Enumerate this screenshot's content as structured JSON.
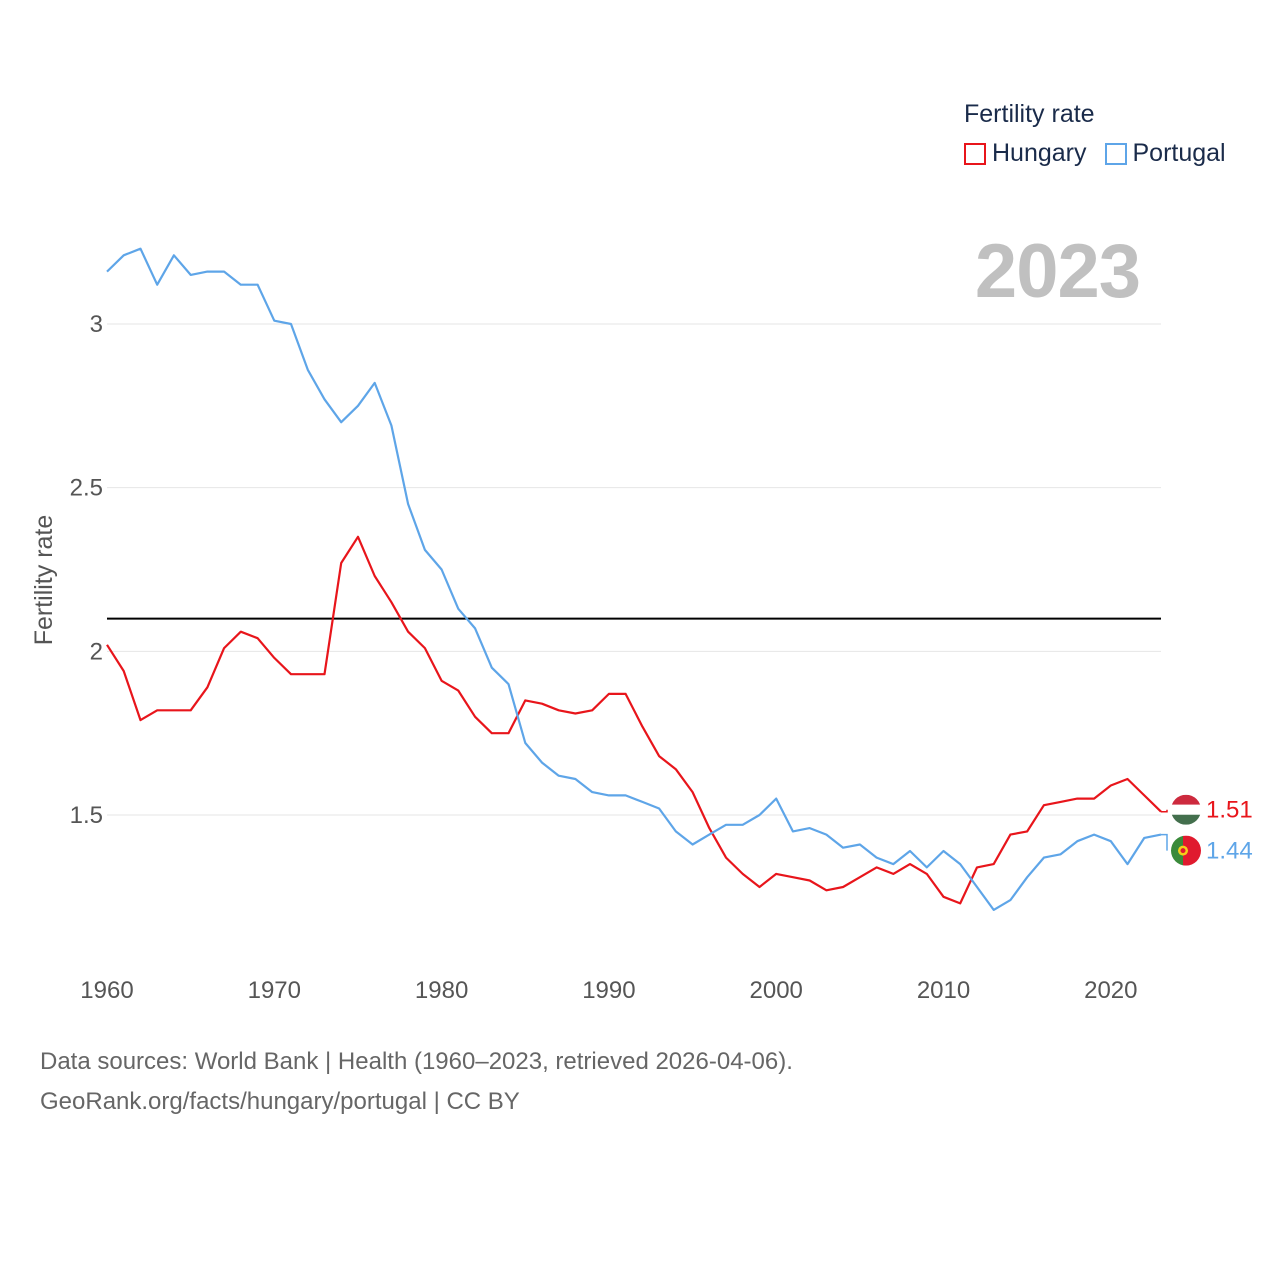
{
  "legend": {
    "title": "Fertility rate",
    "items": [
      {
        "label": "Hungary",
        "color": "#e8151b"
      },
      {
        "label": "Portugal",
        "color": "#5ea5e8"
      }
    ]
  },
  "current_year": "2023",
  "footer": {
    "line1": "Data sources: World Bank | Health (1960–2023, retrieved 2026-04-06).",
    "line2": "GeoRank.org/facts/hungary/portugal | CC BY"
  },
  "chart_data": {
    "type": "line",
    "title": "Fertility rate",
    "xlabel": "",
    "ylabel": "Fertility rate",
    "xlim": [
      1960,
      2023
    ],
    "ylim": [
      1.0,
      3.3
    ],
    "x_ticks": [
      1960,
      1970,
      1980,
      1990,
      2000,
      2010,
      2020
    ],
    "y_ticks": [
      {
        "value": 1.5,
        "label": "1.5"
      },
      {
        "value": 2,
        "label": "2"
      },
      {
        "value": 2.5,
        "label": "2.5"
      },
      {
        "value": 3,
        "label": "3"
      }
    ],
    "reference_line": 2.1,
    "x": [
      1960,
      1961,
      1962,
      1963,
      1964,
      1965,
      1966,
      1967,
      1968,
      1969,
      1970,
      1971,
      1972,
      1973,
      1974,
      1975,
      1976,
      1977,
      1978,
      1979,
      1980,
      1981,
      1982,
      1983,
      1984,
      1985,
      1986,
      1987,
      1988,
      1989,
      1990,
      1991,
      1992,
      1993,
      1994,
      1995,
      1996,
      1997,
      1998,
      1999,
      2000,
      2001,
      2002,
      2003,
      2004,
      2005,
      2006,
      2007,
      2008,
      2009,
      2010,
      2011,
      2012,
      2013,
      2014,
      2015,
      2016,
      2017,
      2018,
      2019,
      2020,
      2021,
      2022,
      2023
    ],
    "series": [
      {
        "name": "Hungary",
        "color": "#e8151b",
        "end_label": "1.51",
        "values": [
          2.02,
          1.94,
          1.79,
          1.82,
          1.82,
          1.82,
          1.89,
          2.01,
          2.06,
          2.04,
          1.98,
          1.93,
          1.93,
          1.93,
          2.27,
          2.35,
          2.23,
          2.15,
          2.06,
          2.01,
          1.91,
          1.88,
          1.8,
          1.75,
          1.75,
          1.85,
          1.84,
          1.82,
          1.81,
          1.82,
          1.87,
          1.87,
          1.77,
          1.68,
          1.64,
          1.57,
          1.46,
          1.37,
          1.32,
          1.28,
          1.32,
          1.31,
          1.3,
          1.27,
          1.28,
          1.31,
          1.34,
          1.32,
          1.35,
          1.32,
          1.25,
          1.23,
          1.34,
          1.35,
          1.44,
          1.45,
          1.53,
          1.54,
          1.55,
          1.55,
          1.59,
          1.61,
          1.56,
          1.51
        ]
      },
      {
        "name": "Portugal",
        "color": "#5ea5e8",
        "end_label": "1.44",
        "values": [
          3.16,
          3.21,
          3.23,
          3.12,
          3.21,
          3.15,
          3.16,
          3.16,
          3.12,
          3.12,
          3.01,
          3.0,
          2.86,
          2.77,
          2.7,
          2.75,
          2.82,
          2.69,
          2.45,
          2.31,
          2.25,
          2.13,
          2.07,
          1.95,
          1.9,
          1.72,
          1.66,
          1.62,
          1.61,
          1.57,
          1.56,
          1.56,
          1.54,
          1.52,
          1.45,
          1.41,
          1.44,
          1.47,
          1.47,
          1.5,
          1.55,
          1.45,
          1.46,
          1.44,
          1.4,
          1.41,
          1.37,
          1.35,
          1.39,
          1.34,
          1.39,
          1.35,
          1.28,
          1.21,
          1.24,
          1.31,
          1.37,
          1.38,
          1.42,
          1.44,
          1.42,
          1.35,
          1.43,
          1.44
        ]
      }
    ]
  }
}
